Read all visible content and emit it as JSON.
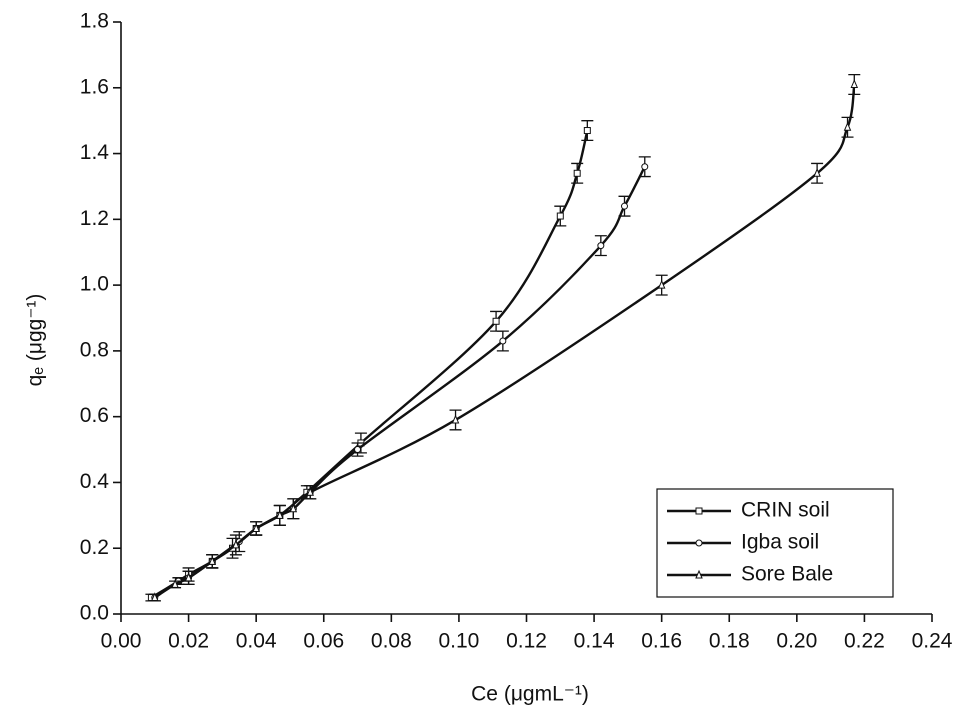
{
  "chart_data": {
    "type": "line",
    "xlabel": "Ce (μgmL⁻¹)",
    "ylabel": "qₑ (μgg⁻¹)",
    "xlim": [
      0,
      0.24
    ],
    "ylim": [
      0,
      1.8
    ],
    "xticks": [
      {
        "value": 0,
        "label": "0.00"
      },
      {
        "value": 0.02,
        "label": "0.02"
      },
      {
        "value": 0.04,
        "label": "0.04"
      },
      {
        "value": 0.06,
        "label": "0.06"
      },
      {
        "value": 0.08,
        "label": "0.08"
      },
      {
        "value": 0.1,
        "label": "0.10"
      },
      {
        "value": 0.12,
        "label": "0.12"
      },
      {
        "value": 0.14,
        "label": "0.14"
      },
      {
        "value": 0.16,
        "label": "0.16"
      },
      {
        "value": 0.18,
        "label": "0.18"
      },
      {
        "value": 0.2,
        "label": "0.20"
      },
      {
        "value": 0.22,
        "label": "0.22"
      },
      {
        "value": 0.24,
        "label": "0.24"
      }
    ],
    "yticks": [
      {
        "value": 0,
        "label": "0.0"
      },
      0.2,
      0.4,
      0.6,
      0.8,
      {
        "value": 1,
        "label": "1.0"
      },
      1.2,
      1.4,
      1.6,
      1.8
    ],
    "legend": "bottom-right",
    "series": [
      {
        "name": "CRIN soil",
        "color": "#111111",
        "marker": "square",
        "x": [
          0.009,
          0.017,
          0.02,
          0.027,
          0.033,
          0.04,
          0.047,
          0.055,
          0.071,
          0.111,
          0.13,
          0.135,
          0.138
        ],
        "values": [
          0.05,
          0.1,
          0.12,
          0.16,
          0.2,
          0.26,
          0.3,
          0.37,
          0.52,
          0.89,
          1.21,
          1.34,
          1.47
        ],
        "errors": [
          0.01,
          0.01,
          0.02,
          0.02,
          0.03,
          0.02,
          0.03,
          0.02,
          0.03,
          0.03,
          0.03,
          0.03,
          0.03
        ]
      },
      {
        "name": "Igba soil",
        "color": "#111111",
        "marker": "circle",
        "x": [
          0.01,
          0.017,
          0.02,
          0.027,
          0.035,
          0.04,
          0.047,
          0.051,
          0.056,
          0.07,
          0.113,
          0.142,
          0.149,
          0.155
        ],
        "values": [
          0.05,
          0.1,
          0.11,
          0.16,
          0.22,
          0.26,
          0.3,
          0.32,
          0.37,
          0.5,
          0.83,
          1.12,
          1.24,
          1.36
        ],
        "errors": [
          0.01,
          0.01,
          0.02,
          0.02,
          0.03,
          0.02,
          0.03,
          0.03,
          0.02,
          0.02,
          0.03,
          0.03,
          0.03,
          0.03
        ]
      },
      {
        "name": "Sore Bale",
        "color": "#111111",
        "marker": "triangle",
        "x": [
          0.01,
          0.016,
          0.02,
          0.027,
          0.034,
          0.04,
          0.047,
          0.051,
          0.056,
          0.099,
          0.16,
          0.206,
          0.215,
          0.217
        ],
        "values": [
          0.05,
          0.09,
          0.11,
          0.16,
          0.21,
          0.26,
          0.3,
          0.32,
          0.37,
          0.59,
          1.0,
          1.34,
          1.48,
          1.61
        ],
        "errors": [
          0.01,
          0.01,
          0.02,
          0.02,
          0.03,
          0.02,
          0.03,
          0.03,
          0.02,
          0.03,
          0.03,
          0.03,
          0.03,
          0.03
        ]
      }
    ]
  }
}
